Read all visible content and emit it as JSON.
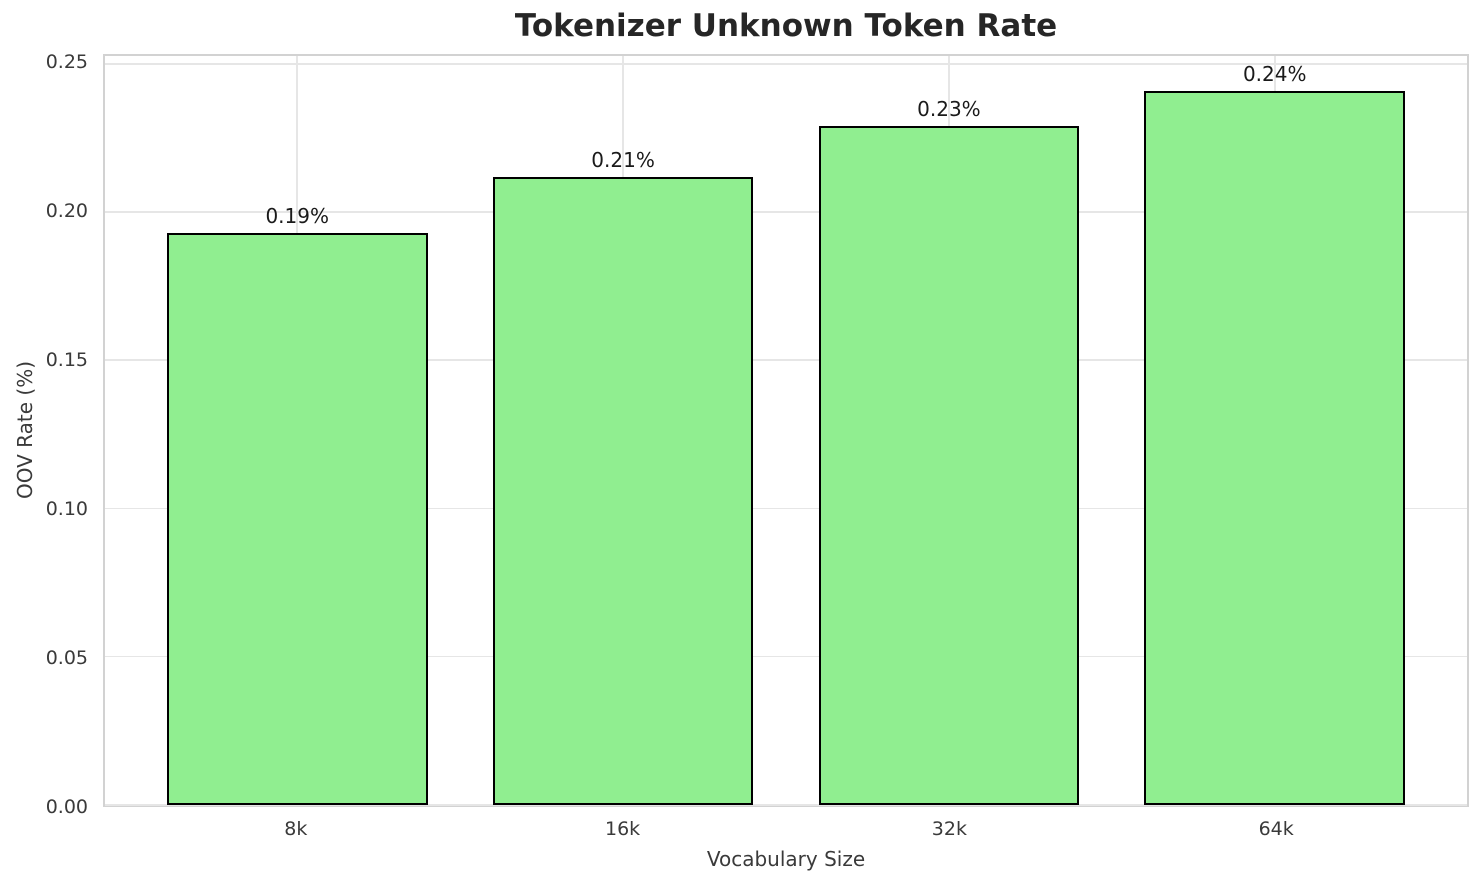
{
  "chart_data": {
    "type": "bar",
    "title": "Tokenizer Unknown Token Rate",
    "xlabel": "Vocabulary Size",
    "ylabel": "OOV Rate (%)",
    "categories": [
      "8k",
      "16k",
      "32k",
      "64k"
    ],
    "values": [
      0.193,
      0.212,
      0.229,
      0.241
    ],
    "bar_labels": [
      "0.19%",
      "0.21%",
      "0.23%",
      "0.24%"
    ],
    "yticks": [
      0.0,
      0.05,
      0.1,
      0.15,
      0.2,
      0.25
    ],
    "ytick_labels": [
      "0.00",
      "0.05",
      "0.10",
      "0.15",
      "0.20",
      "0.25"
    ],
    "ylim": [
      0,
      0.2527
    ],
    "grid": true,
    "legend": "none",
    "colors": {
      "background": "#ffffff",
      "bar_fill": "#90EE90",
      "bar_edge": "#000000",
      "grid": "#e6e6e6",
      "spine": "#d2d2d2",
      "title_text": "#262626",
      "axis_text": "#3a3a3a",
      "label_text": "#1a1a1a"
    }
  }
}
